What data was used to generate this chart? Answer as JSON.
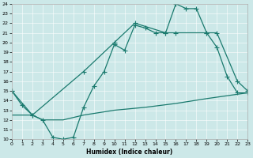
{
  "xlabel": "Humidex (Indice chaleur)",
  "xlim": [
    0,
    23
  ],
  "ylim": [
    10,
    24
  ],
  "bg_color": "#cce8e8",
  "line_color": "#1a7a6e",
  "line1_x": [
    0,
    1,
    2,
    3,
    4,
    5,
    6,
    7,
    8,
    9,
    10,
    11,
    12,
    13,
    14,
    15,
    16,
    17,
    18,
    19,
    20,
    21,
    22,
    23
  ],
  "line1_y": [
    15.0,
    13.5,
    12.5,
    12.0,
    10.2,
    10.0,
    10.2,
    13.3,
    15.5,
    17.0,
    19.8,
    19.2,
    21.8,
    21.5,
    21.0,
    21.0,
    24.0,
    23.5,
    23.5,
    21.0,
    19.5,
    16.5,
    14.8,
    14.8
  ],
  "line2_x": [
    0,
    2,
    7,
    10,
    12,
    15,
    16,
    19,
    20,
    22,
    23
  ],
  "line2_y": [
    15.0,
    12.5,
    17.0,
    20.0,
    22.0,
    21.0,
    21.0,
    21.0,
    21.0,
    16.0,
    15.0
  ],
  "line3_x": [
    0,
    1,
    2,
    3,
    5,
    7,
    10,
    13,
    16,
    19,
    21,
    23
  ],
  "line3_y": [
    12.5,
    12.5,
    12.5,
    12.0,
    12.0,
    12.5,
    13.0,
    13.3,
    13.7,
    14.2,
    14.5,
    14.8
  ],
  "marker_size": 2.0,
  "line_width": 0.9,
  "tick_fontsize": 4.5,
  "xlabel_fontsize": 5.5
}
